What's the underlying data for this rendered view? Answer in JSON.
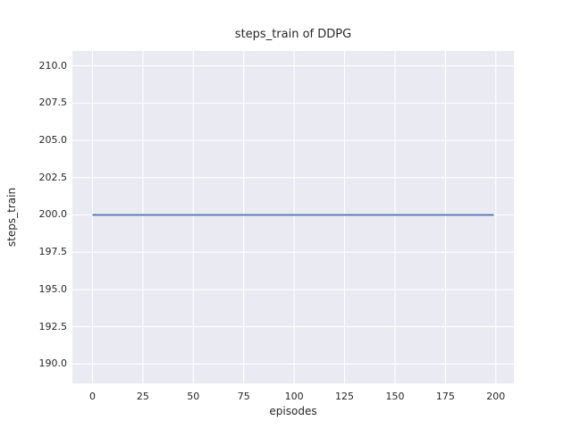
{
  "figure": {
    "kind": "matplotlib-seaborn-figure"
  },
  "colors": {
    "figure_background": "#ffffff",
    "axes_background": "#eaeaf2",
    "grid": "#ffffff",
    "line": "#4c72b0",
    "text": "#262626"
  },
  "chart_data": {
    "type": "line",
    "title": "steps_train of DDPG",
    "xlabel": "episodes",
    "ylabel": "steps_train",
    "series": [
      {
        "name": "steps_train",
        "color": "#4c72b0",
        "x_range": [
          0,
          199
        ],
        "y_constant": 200,
        "description": "constant value 200 for every episode from 0 to 199"
      }
    ],
    "x_ticks": [
      0,
      25,
      50,
      75,
      100,
      125,
      150,
      175,
      200
    ],
    "x_tick_labels": [
      "0",
      "25",
      "50",
      "75",
      "100",
      "125",
      "150",
      "175",
      "200"
    ],
    "y_ticks": [
      210.0,
      207.5,
      205.0,
      202.5,
      200.0,
      197.5,
      195.0,
      192.5,
      190.0
    ],
    "y_tick_labels": [
      "210.0",
      "207.5",
      "205.0",
      "202.5",
      "200.0",
      "197.5",
      "195.0",
      "192.5",
      "190.0"
    ],
    "xlim": [
      -9.95,
      208.95
    ],
    "ylim": [
      188.7,
      211.0
    ],
    "grid": true,
    "legend": false
  }
}
